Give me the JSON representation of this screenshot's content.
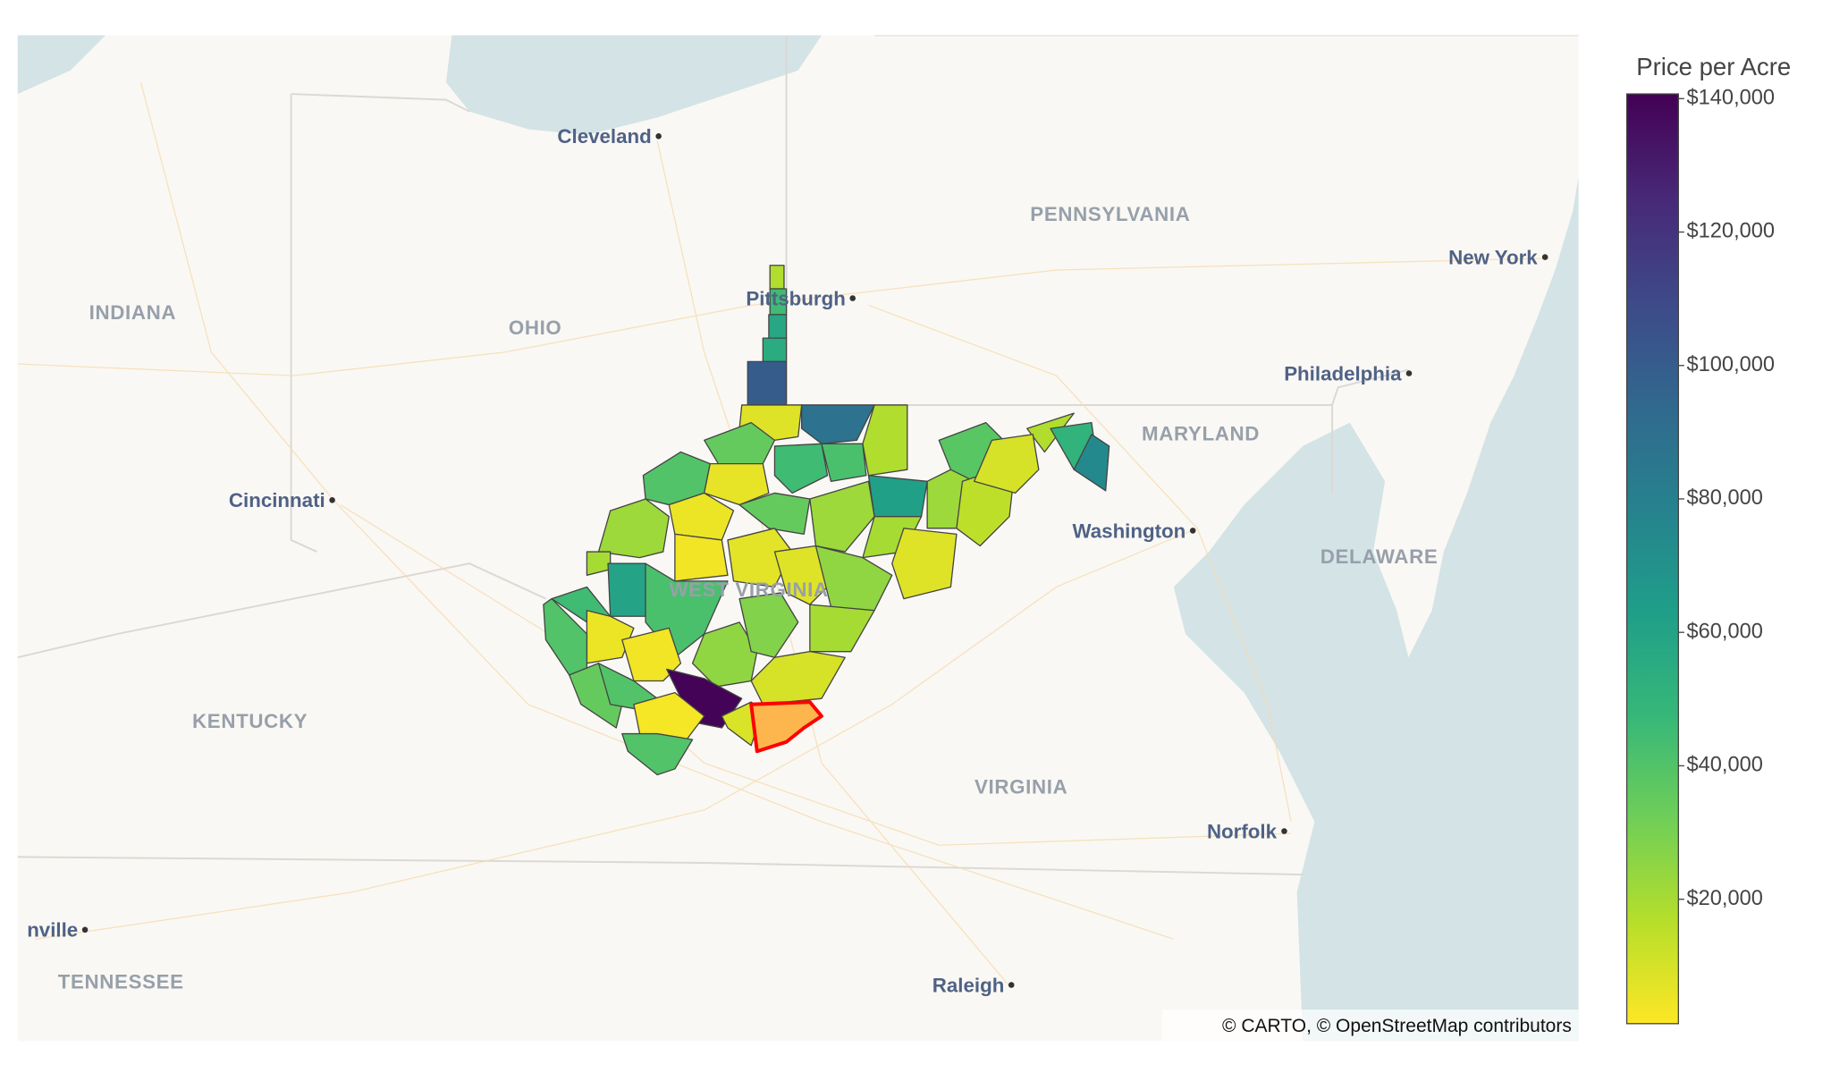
{
  "chart_data": {
    "type": "choropleth",
    "colorscale": [
      "#fde725",
      "#b5de2b",
      "#6ece58",
      "#35b779",
      "#1f9e89",
      "#26828e",
      "#31688e",
      "#3e4989",
      "#482878",
      "#440154"
    ],
    "counties": {
      "values": [
        18000,
        45000,
        58000,
        55000,
        100000,
        8000,
        88000,
        18000,
        35000,
        45000,
        42000,
        62000,
        40000,
        6000,
        5000,
        35000,
        22000,
        20000,
        22000,
        38000,
        15000,
        18000,
        10000,
        50000,
        75000,
        8000,
        22000,
        4000,
        7000,
        8000,
        25000,
        20000,
        60000,
        42000,
        45000,
        5000,
        40000,
        4000,
        25000,
        28000,
        20000,
        10000,
        140000,
        35000,
        40000,
        3000,
        9000,
        null,
        40000
      ]
    },
    "highlight": {
      "fill": "#fdb54d",
      "stroke": "#ff0000"
    },
    "colorbar": {
      "title": "Price per Acre",
      "zlim": [
        1350,
        140700
      ],
      "ticks": [
        {
          "value": 20000,
          "label": "$20,000"
        },
        {
          "value": 40000,
          "label": "$40,000"
        },
        {
          "value": 60000,
          "label": "$60,000"
        },
        {
          "value": 80000,
          "label": "$80,000"
        },
        {
          "value": 100000,
          "label": "$100,000"
        },
        {
          "value": 120000,
          "label": "$120,000"
        },
        {
          "value": 140000,
          "label": "$140,000"
        }
      ]
    },
    "places": [
      {
        "name": "Cleveland",
        "kind": "city"
      },
      {
        "name": "PENNSYLVANIA",
        "kind": "state"
      },
      {
        "name": "New York",
        "kind": "city"
      },
      {
        "name": "Pittsburgh",
        "kind": "city"
      },
      {
        "name": "INDIANA",
        "kind": "state"
      },
      {
        "name": "OHIO",
        "kind": "state"
      },
      {
        "name": "Philadelphia",
        "kind": "city"
      },
      {
        "name": "MARYLAND",
        "kind": "state"
      },
      {
        "name": "Cincinnati",
        "kind": "city"
      },
      {
        "name": "Washington",
        "kind": "city"
      },
      {
        "name": "DELAWARE",
        "kind": "state"
      },
      {
        "name": "WEST VIRGINIA",
        "kind": "state"
      },
      {
        "name": "KENTUCKY",
        "kind": "state"
      },
      {
        "name": "VIRGINIA",
        "kind": "state"
      },
      {
        "name": "Norfolk",
        "kind": "city"
      },
      {
        "name": "nville",
        "kind": "city"
      },
      {
        "name": "TENNESSEE",
        "kind": "state"
      },
      {
        "name": "Raleigh",
        "kind": "city"
      }
    ],
    "attribution": "© CARTO, © OpenStreetMap contributors"
  }
}
